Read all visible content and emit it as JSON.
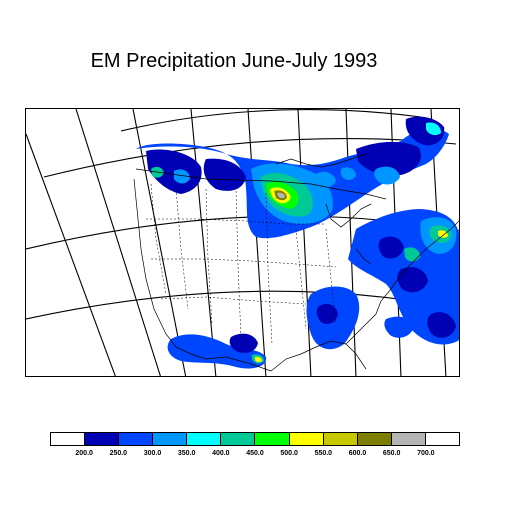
{
  "title": "EM Precipitation June-July 1993",
  "legend": {
    "colors": [
      "#ffffff",
      "#0000b4",
      "#0046ff",
      "#0096ff",
      "#00ffff",
      "#00c896",
      "#00ff00",
      "#ffff00",
      "#c8c800",
      "#7d7d00",
      "#b4b4b4",
      "#ffffff"
    ],
    "labels": [
      "200.0",
      "250.0",
      "300.0",
      "350.0",
      "400.0",
      "450.0",
      "500.0",
      "550.0",
      "600.0",
      "650.0",
      "700.0"
    ]
  }
}
